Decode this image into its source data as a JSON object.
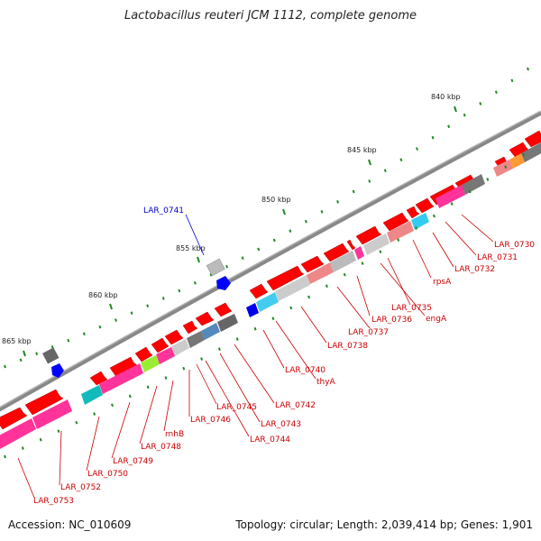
{
  "title": "Lactobacillus reuteri JCM 1112, complete genome",
  "footer": {
    "accession": "Accession: NC_010609",
    "summary": "Topology: circular; Length: 2,039,414 bp; Genes: 1,901"
  },
  "ruler": [
    {
      "label": "840 kbp"
    },
    {
      "label": "845 kbp"
    },
    {
      "label": "850 kbp"
    },
    {
      "label": "855 kbp"
    },
    {
      "label": "860 kbp"
    },
    {
      "label": "865 kbp"
    }
  ],
  "genes": [
    {
      "label": "LAR_0730"
    },
    {
      "label": "LAR_0731"
    },
    {
      "label": "LAR_0732"
    },
    {
      "label": "rpsA"
    },
    {
      "label": "LAR_0735"
    },
    {
      "label": "engA"
    },
    {
      "label": "LAR_0736"
    },
    {
      "label": "LAR_0737"
    },
    {
      "label": "LAR_0738"
    },
    {
      "label": "LAR_0740"
    },
    {
      "label": "thyA"
    },
    {
      "label": "LAR_0742"
    },
    {
      "label": "LAR_0743"
    },
    {
      "label": "LAR_0744"
    },
    {
      "label": "LAR_0745"
    },
    {
      "label": "LAR_0746"
    },
    {
      "label": "rnhB"
    },
    {
      "label": "LAR_0748"
    },
    {
      "label": "LAR_0749"
    },
    {
      "label": "LAR_0750"
    },
    {
      "label": "LAR_0752"
    },
    {
      "label": "LAR_0753"
    },
    {
      "label": "LAR_0741"
    }
  ],
  "colors": {
    "backbone": "#888888",
    "cds": "#ff0000",
    "label_minus": "#cc0000",
    "label_plus": "#0000cc",
    "ticks": "#228822"
  }
}
